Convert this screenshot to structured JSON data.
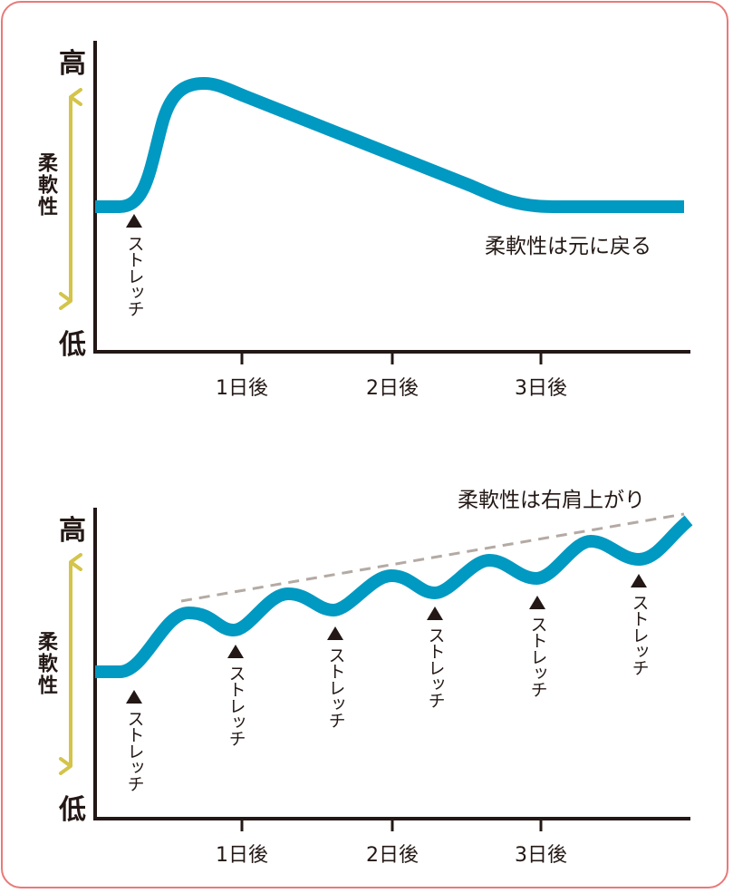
{
  "colors": {
    "curve": "#0099c2",
    "arrow": "#d4c44a",
    "trend": "#b4aaa4",
    "frame": "#e87a78",
    "axis": "#231815"
  },
  "top": {
    "high": "高",
    "low": "低",
    "axis_label": "柔軟性",
    "x_ticks": [
      "1日後",
      "2日後",
      "3日後"
    ],
    "stretch_labels": [
      "ストレッチ"
    ],
    "note": "柔軟性は元に戻る"
  },
  "bottom": {
    "high": "高",
    "low": "低",
    "axis_label": "柔軟性",
    "x_ticks": [
      "1日後",
      "2日後",
      "3日後"
    ],
    "stretch_labels": [
      "ストレッチ",
      "ストレッチ",
      "ストレッチ",
      "ストレッチ",
      "ストレッチ",
      "ストレッチ"
    ],
    "note": "柔軟性は右肩上がり"
  }
}
